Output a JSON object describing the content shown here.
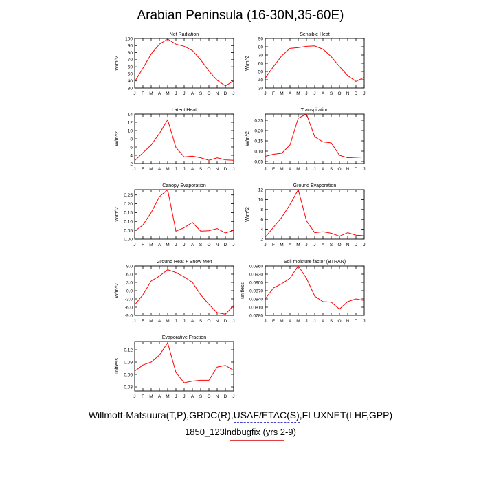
{
  "title": "Arabian Peninsula (16-30N,35-60E)",
  "footer": {
    "line1": "Willmott-Matsuura(T,P),GRDC(R),USAF/ETAC(S),FLUXNET(LHF,GPP)",
    "line2": "1850_123lndbugfix (yrs 2-9)"
  },
  "colors": {
    "line": "#ff0000",
    "frame": "#000000"
  },
  "chart_data": [
    {
      "type": "line",
      "title": "Net Radiation",
      "ylabel": "W/m^2",
      "x": [
        "J",
        "F",
        "M",
        "A",
        "M",
        "J",
        "J",
        "A",
        "S",
        "O",
        "N",
        "D",
        "J"
      ],
      "ylim": [
        30,
        100
      ],
      "yticks": [
        30,
        40,
        50,
        60,
        70,
        80,
        90,
        100
      ],
      "yticklabels": [
        "30",
        "40",
        "50",
        "60",
        "70",
        "80",
        "90",
        "100"
      ],
      "values": [
        39,
        58,
        78,
        92,
        99,
        92,
        89,
        83,
        70,
        54,
        41,
        33,
        40
      ]
    },
    {
      "type": "line",
      "title": "Sensible Heat",
      "ylabel": "W/m^2",
      "x": [
        "J",
        "F",
        "M",
        "A",
        "M",
        "J",
        "J",
        "A",
        "S",
        "O",
        "N",
        "D",
        "J"
      ],
      "ylim": [
        30,
        90
      ],
      "yticks": [
        30,
        40,
        50,
        60,
        70,
        80,
        90
      ],
      "yticklabels": [
        "30",
        "40",
        "50",
        "60",
        "70",
        "80",
        "90"
      ],
      "values": [
        42,
        56,
        69,
        78,
        79,
        80.5,
        81,
        77,
        68,
        56,
        45,
        38,
        43
      ]
    },
    {
      "type": "line",
      "title": "Latent Heat",
      "ylabel": "W/m^2",
      "x": [
        "J",
        "F",
        "M",
        "A",
        "M",
        "J",
        "J",
        "A",
        "S",
        "O",
        "N",
        "D",
        "J"
      ],
      "ylim": [
        2,
        14
      ],
      "yticks": [
        2,
        4,
        6,
        8,
        10,
        12,
        14
      ],
      "yticklabels": [
        "2",
        "4",
        "6",
        "8",
        "10",
        "12",
        "14"
      ],
      "values": [
        2.7,
        4.6,
        6.5,
        9.3,
        12.6,
        5.9,
        3.6,
        3.8,
        3.4,
        2.8,
        3.4,
        2.9,
        2.8
      ]
    },
    {
      "type": "line",
      "title": "Transpiration",
      "ylabel": "W/m^2",
      "x": [
        "J",
        "F",
        "M",
        "A",
        "M",
        "J",
        "J",
        "A",
        "S",
        "O",
        "N",
        "D",
        "J"
      ],
      "ylim": [
        0.04,
        0.28
      ],
      "yticks": [
        0.05,
        0.1,
        0.15,
        0.2,
        0.25
      ],
      "yticklabels": [
        "0.05",
        "0.10",
        "0.15",
        "0.20",
        "0.25"
      ],
      "values": [
        0.075,
        0.085,
        0.09,
        0.13,
        0.26,
        0.28,
        0.17,
        0.145,
        0.14,
        0.08,
        0.068,
        0.07,
        0.072
      ]
    },
    {
      "type": "line",
      "title": "Canopy Evaporation",
      "ylabel": "W/m^2",
      "x": [
        "J",
        "F",
        "M",
        "A",
        "M",
        "J",
        "J",
        "A",
        "S",
        "O",
        "N",
        "D",
        "J"
      ],
      "ylim": [
        0,
        0.28
      ],
      "yticks": [
        0,
        0.05,
        0.1,
        0.15,
        0.2,
        0.25
      ],
      "yticklabels": [
        "0.00",
        "0.05",
        "0.10",
        "0.15",
        "0.20",
        "0.25"
      ],
      "values": [
        0.045,
        0.08,
        0.15,
        0.24,
        0.28,
        0.045,
        0.065,
        0.095,
        0.045,
        0.048,
        0.06,
        0.035,
        0.05
      ]
    },
    {
      "type": "line",
      "title": "Ground Evaporation",
      "ylabel": "W/m^2",
      "x": [
        "J",
        "F",
        "M",
        "A",
        "M",
        "J",
        "J",
        "A",
        "S",
        "O",
        "N",
        "D",
        "J"
      ],
      "ylim": [
        2,
        12
      ],
      "yticks": [
        2,
        4,
        6,
        8,
        10,
        12
      ],
      "yticklabels": [
        "2",
        "4",
        "6",
        "8",
        "10",
        "12"
      ],
      "values": [
        2.4,
        4.4,
        6.4,
        9.0,
        12.0,
        5.7,
        3.3,
        3.5,
        3.2,
        2.6,
        3.3,
        2.8,
        2.7
      ]
    },
    {
      "type": "line",
      "title": "Ground Heat + Snow Melt",
      "ylabel": "W/m^2",
      "x": [
        "J",
        "F",
        "M",
        "A",
        "M",
        "J",
        "J",
        "A",
        "S",
        "O",
        "N",
        "D",
        "J"
      ],
      "ylim": [
        -9,
        9
      ],
      "yticks": [
        -9,
        -6,
        -3,
        0,
        3,
        6,
        9
      ],
      "yticklabels": [
        "-9.0",
        "-6.0",
        "-3.0",
        "0.0",
        "3.0",
        "6.0",
        "9.0"
      ],
      "values": [
        -5.2,
        -1.5,
        3.5,
        5.3,
        7.6,
        6.6,
        5.0,
        3.0,
        -1.5,
        -5.0,
        -8.0,
        -8.6,
        -5.3
      ]
    },
    {
      "type": "line",
      "title": "Soil moisture factor (BTRAN)",
      "ylabel": "unitless",
      "x": [
        "J",
        "F",
        "M",
        "A",
        "M",
        "J",
        "J",
        "A",
        "S",
        "O",
        "N",
        "D",
        "J"
      ],
      "ylim": [
        0.078,
        0.096
      ],
      "yticks": [
        0.078,
        0.081,
        0.084,
        0.087,
        0.09,
        0.093,
        0.096
      ],
      "yticklabels": [
        "0.0780",
        "0.0810",
        "0.0840",
        "0.0870",
        "0.0900",
        "0.0930",
        "0.0960"
      ],
      "values": [
        0.084,
        0.088,
        0.0895,
        0.0915,
        0.096,
        0.0915,
        0.085,
        0.083,
        0.0828,
        0.0803,
        0.083,
        0.084,
        0.0834
      ]
    },
    {
      "type": "line",
      "title": "Evaporative Fraction",
      "ylabel": "unitless",
      "x": [
        "J",
        "F",
        "M",
        "A",
        "M",
        "J",
        "J",
        "A",
        "S",
        "O",
        "N",
        "D",
        "J"
      ],
      "ylim": [
        0.02,
        0.14
      ],
      "yticks": [
        0.03,
        0.06,
        0.09,
        0.12
      ],
      "yticklabels": [
        "0.03",
        "0.06",
        "0.09",
        "0.12"
      ],
      "values": [
        0.068,
        0.083,
        0.09,
        0.107,
        0.137,
        0.065,
        0.04,
        0.044,
        0.046,
        0.046,
        0.078,
        0.082,
        0.07
      ]
    }
  ]
}
